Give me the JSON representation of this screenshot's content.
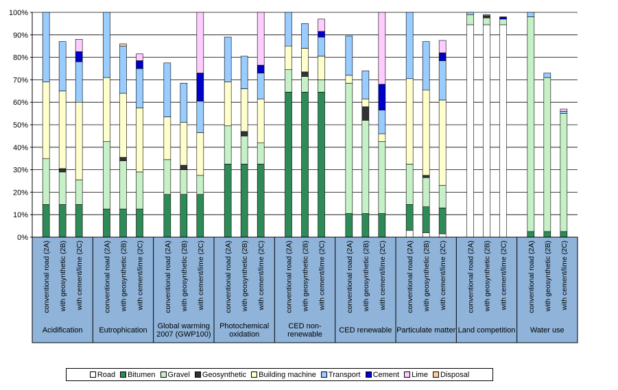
{
  "chart_data": {
    "type": "bar",
    "stacked": true,
    "ylim": [
      0,
      100
    ],
    "ytick_labels": [
      "0%",
      "10%",
      "20%",
      "30%",
      "40%",
      "50%",
      "60%",
      "70%",
      "80%",
      "90%",
      "100%"
    ],
    "grid": true,
    "legend_position": "bottom",
    "components": [
      {
        "name": "Road",
        "color": "#ffffff"
      },
      {
        "name": "Bitumen",
        "color": "#2e8b57"
      },
      {
        "name": "Gravel",
        "color": "#c6f0c6"
      },
      {
        "name": "Geosynthetic",
        "color": "#333333"
      },
      {
        "name": "Building machine",
        "color": "#ffffcc"
      },
      {
        "name": "Transport",
        "color": "#99ccff"
      },
      {
        "name": "Cement",
        "color": "#0000cc"
      },
      {
        "name": "Lime",
        "color": "#ffccff"
      },
      {
        "name": "Disposal",
        "color": "#ffcc99"
      }
    ],
    "groups": [
      {
        "name": "Acidification",
        "bars": [
          {
            "label": "conventional road (2A)",
            "values": [
              0,
              14.5,
              20.5,
              0,
              34,
              31,
              0,
              0,
              0
            ]
          },
          {
            "label": "with geosynthetic (2B)",
            "values": [
              0,
              14.5,
              14.5,
              1.5,
              34.5,
              22,
              0,
              0,
              0
            ]
          },
          {
            "label": "with cement/lime (2C)",
            "values": [
              0,
              14.5,
              11,
              0,
              34.5,
              18,
              4.5,
              5.5,
              0
            ]
          }
        ]
      },
      {
        "name": "Eutrophication",
        "bars": [
          {
            "label": "conventional road (2A)",
            "values": [
              0,
              12.5,
              30,
              0,
              28.5,
              29,
              0,
              0,
              0
            ]
          },
          {
            "label": "with geosynthetic (2B)",
            "values": [
              0,
              12.5,
              21.5,
              1.5,
              28.5,
              21,
              0,
              0,
              1
            ]
          },
          {
            "label": "with cement/lime (2C)",
            "values": [
              0,
              12.5,
              16.5,
              0,
              28.5,
              17.5,
              3.5,
              3,
              0
            ]
          }
        ]
      },
      {
        "name": "Global warming 2007 (GWP100)",
        "bars": [
          {
            "label": "conventional road (2A)",
            "values": [
              0,
              19,
              15.5,
              0,
              19,
              24,
              0,
              0,
              0
            ]
          },
          {
            "label": "with geosynthetic (2B)",
            "values": [
              0,
              19,
              11,
              2,
              19,
              17.5,
              0,
              0,
              0
            ]
          },
          {
            "label": "with cement/lime (2C)",
            "values": [
              0,
              19,
              8.5,
              0,
              19,
              14,
              12.5,
              27,
              0
            ]
          }
        ]
      },
      {
        "name": "Photochemical oxidation",
        "bars": [
          {
            "label": "conventional road (2A)",
            "values": [
              0,
              32.5,
              17,
              0,
              19.5,
              20,
              0,
              0,
              0
            ]
          },
          {
            "label": "with geosynthetic (2B)",
            "values": [
              0,
              32.5,
              12.5,
              2,
              19,
              14.5,
              0,
              0,
              0
            ]
          },
          {
            "label": "with cement/lime (2C)",
            "values": [
              0,
              32.5,
              9.5,
              0,
              19.5,
              11.5,
              3.5,
              23.5,
              0
            ]
          }
        ]
      },
      {
        "name": "CED non-renewable",
        "bars": [
          {
            "label": "conventional road (2A)",
            "values": [
              0,
              64.5,
              10,
              0,
              10.5,
              15,
              0,
              0,
              0
            ]
          },
          {
            "label": "with geosynthetic (2B)",
            "values": [
              0,
              64.5,
              7,
              2,
              10.5,
              11,
              0,
              0,
              0
            ]
          },
          {
            "label": "with cement/lime (2C)",
            "values": [
              0,
              64.5,
              5.5,
              0,
              10.5,
              8.5,
              2.5,
              5.5,
              0
            ]
          }
        ]
      },
      {
        "name": "CED renewable",
        "bars": [
          {
            "label": "conventional road (2A)",
            "values": [
              0,
              10.5,
              58,
              0,
              3.5,
              17.5,
              0,
              0,
              0
            ]
          },
          {
            "label": "with geosynthetic (2B)",
            "values": [
              0,
              10.5,
              41.5,
              6,
              3.5,
              12.5,
              0,
              0,
              0
            ]
          },
          {
            "label": "with cement/lime (2C)",
            "values": [
              0,
              10.5,
              32,
              0,
              3.5,
              10.5,
              11.5,
              32,
              0
            ]
          }
        ]
      },
      {
        "name": "Particulate matter",
        "bars": [
          {
            "label": "conventional road (2A)",
            "values": [
              3,
              11.5,
              18,
              0,
              38,
              29.5,
              0,
              0,
              0
            ]
          },
          {
            "label": "with geosynthetic (2B)",
            "values": [
              2,
              11.5,
              13,
              1,
              38,
              21.5,
              0,
              0,
              0
            ]
          },
          {
            "label": "with cement/lime (2C)",
            "values": [
              1.5,
              11.5,
              10,
              0,
              38,
              17.5,
              3.5,
              5.5,
              0
            ]
          }
        ]
      },
      {
        "name": "Land competition",
        "bars": [
          {
            "label": "conventional road (2A)",
            "values": [
              94.5,
              0,
              4.5,
              0,
              0,
              1,
              0,
              0,
              0
            ]
          },
          {
            "label": "with geosynthetic (2B)",
            "values": [
              94.5,
              0,
              3,
              1,
              0,
              0.5,
              0,
              0,
              0
            ]
          },
          {
            "label": "with cement/lime (2C)",
            "values": [
              94.5,
              0,
              2.5,
              0,
              0,
              0,
              1,
              0,
              0
            ]
          }
        ]
      },
      {
        "name": "Water use",
        "bars": [
          {
            "label": "conventional road (2A)",
            "values": [
              0,
              2.5,
              95.5,
              0,
              0,
              2,
              0,
              0,
              0
            ]
          },
          {
            "label": "with geosynthetic (2B)",
            "values": [
              0,
              2.5,
              68.5,
              0,
              0,
              2,
              0,
              0,
              0
            ]
          },
          {
            "label": "with cement/lime (2C)",
            "values": [
              0,
              2.5,
              52.5,
              0,
              0,
              1,
              0,
              1,
              0
            ]
          }
        ]
      }
    ]
  }
}
